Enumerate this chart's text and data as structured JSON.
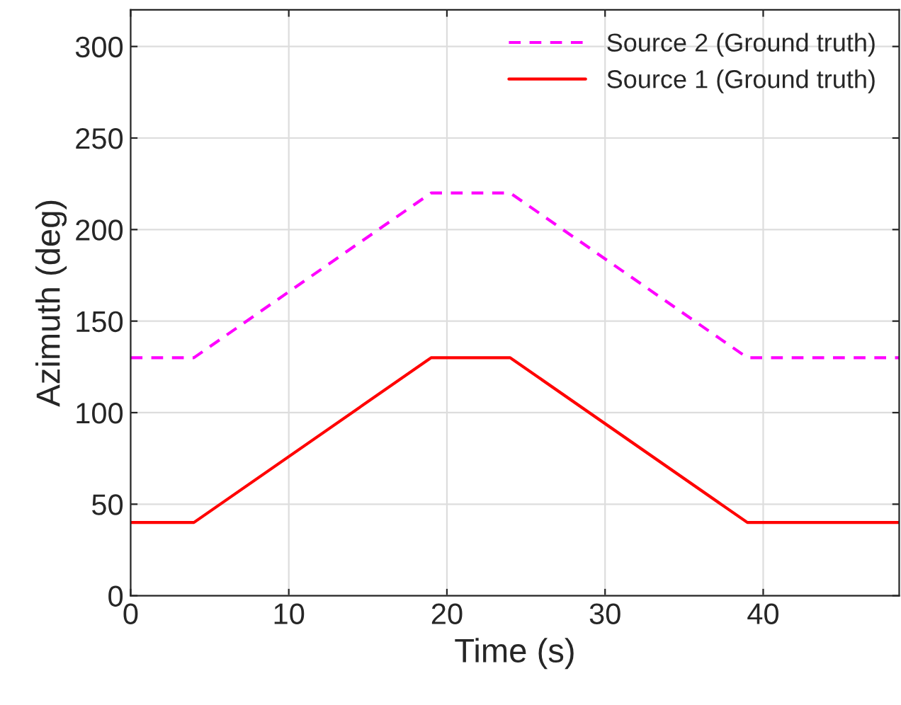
{
  "chart_data": {
    "type": "line",
    "xlabel": "Time (s)",
    "ylabel": "Azimuth (deg)",
    "xlim": [
      0,
      48.6
    ],
    "xticks": [
      0,
      10,
      20,
      30,
      40
    ],
    "ylim": [
      0,
      320
    ],
    "yticks": [
      0,
      50,
      100,
      150,
      200,
      250,
      300
    ],
    "grid": true,
    "legend": "top right",
    "series": [
      {
        "name": "Source 2 (Ground truth)",
        "color": "#ff00ff",
        "line_style": "dashed",
        "x": [
          0,
          4,
          19,
          24,
          39,
          48.6
        ],
        "values": [
          130,
          130,
          220,
          220,
          130,
          130
        ]
      },
      {
        "name": "Source 1 (Ground truth)",
        "color": "#ff0000",
        "line_style": "solid",
        "x": [
          0,
          4,
          19,
          24,
          39,
          48.6
        ],
        "values": [
          40,
          40,
          130,
          130,
          40,
          40
        ]
      }
    ]
  }
}
